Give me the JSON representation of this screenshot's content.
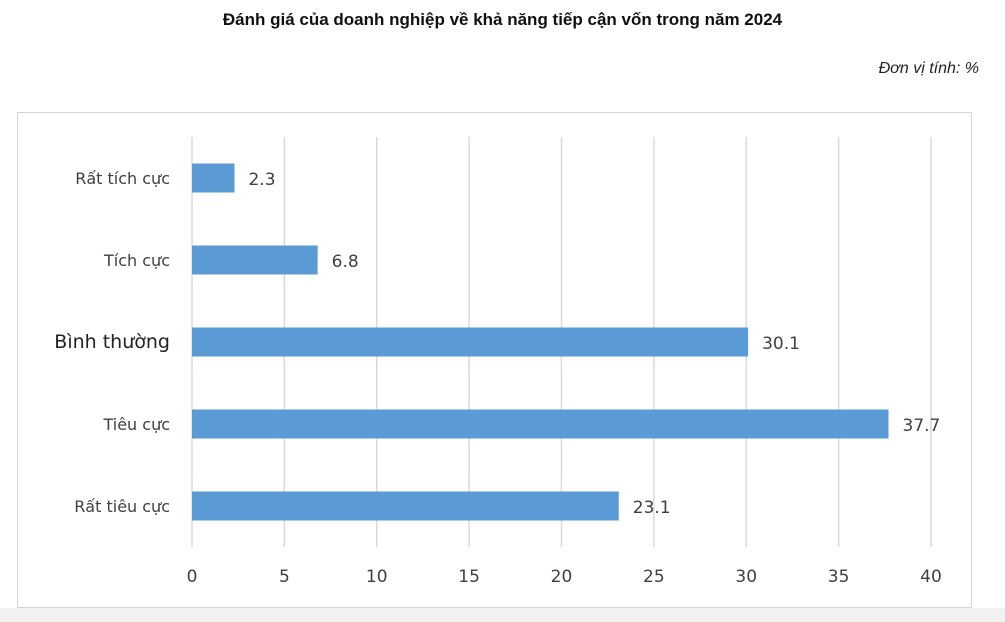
{
  "page": {
    "title": "Đánh giá của doanh nghiệp về khả năng tiếp cận vốn trong năm 2024",
    "unit_label": "Đơn vị tính: %"
  },
  "chart_data": {
    "type": "bar",
    "orientation": "horizontal",
    "categories": [
      "Rất tích cực",
      "Tích cực",
      "Bình thường",
      "Tiêu cực",
      "Rất tiêu cực"
    ],
    "values": [
      2.3,
      6.8,
      30.1,
      37.7,
      23.1
    ],
    "value_labels": [
      "2.3",
      "6.8",
      "30.1",
      "37.7",
      "23.1"
    ],
    "xlim": [
      0,
      40
    ],
    "x_ticks": [
      0,
      5,
      10,
      15,
      20,
      25,
      30,
      35,
      40
    ],
    "grid": true,
    "bar_color": "#5b9bd5",
    "grid_color": "#d9d9d9"
  }
}
